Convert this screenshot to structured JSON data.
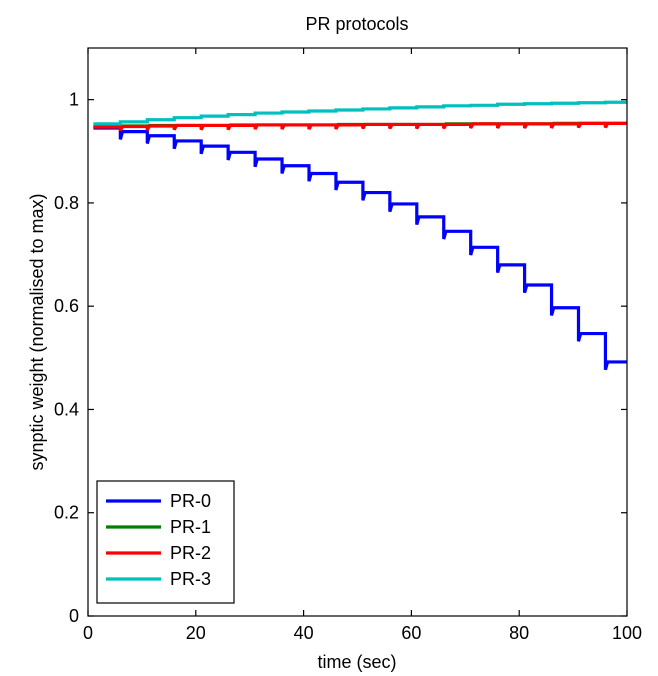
{
  "chart_data": {
    "type": "line",
    "title": "PR protocols",
    "xlabel": "time (sec)",
    "ylabel": "synptic weight (normalised to max)",
    "xlim": [
      0,
      100
    ],
    "ylim": [
      0,
      1.1
    ],
    "xticks": [
      0,
      20,
      40,
      60,
      80,
      100
    ],
    "yticks": [
      0,
      0.2,
      0.4,
      0.6,
      0.8,
      1
    ],
    "xtick_labels": [
      "0",
      "20",
      "40",
      "60",
      "80",
      "100"
    ],
    "ytick_labels": [
      "0",
      "0.2",
      "0.4",
      "0.6",
      "0.8",
      "1"
    ],
    "grid": false,
    "legend_position": "bottom-left",
    "series": [
      {
        "name": "PR-0",
        "color": "#0000ff",
        "step_times": [
          1,
          6,
          11,
          16,
          21,
          26,
          31,
          36,
          41,
          46,
          51,
          56,
          61,
          66,
          71,
          76,
          81,
          86,
          91,
          96
        ],
        "levels": [
          0.945,
          0.938,
          0.93,
          0.92,
          0.91,
          0.898,
          0.885,
          0.872,
          0.857,
          0.84,
          0.82,
          0.798,
          0.773,
          0.745,
          0.714,
          0.68,
          0.641,
          0.597,
          0.547,
          0.492
        ],
        "dip": 0.015,
        "end_x": 100
      },
      {
        "name": "PR-1",
        "color": "#008000",
        "step_times": [
          1,
          6,
          11,
          16,
          21,
          26,
          31,
          36,
          41,
          46,
          51,
          56,
          61,
          66,
          71,
          76,
          81,
          86,
          91,
          96
        ],
        "levels": [
          0.948,
          0.949,
          0.95,
          0.95,
          0.95,
          0.951,
          0.951,
          0.951,
          0.951,
          0.952,
          0.952,
          0.952,
          0.952,
          0.953,
          0.953,
          0.953,
          0.953,
          0.954,
          0.954,
          0.954
        ],
        "dip": 0.008,
        "end_x": 100
      },
      {
        "name": "PR-2",
        "color": "#ff0000",
        "step_times": [
          1,
          6,
          11,
          16,
          21,
          26,
          31,
          36,
          41,
          46,
          51,
          56,
          61,
          66,
          71,
          76,
          81,
          86,
          91,
          96
        ],
        "levels": [
          0.947,
          0.948,
          0.949,
          0.95,
          0.95,
          0.95,
          0.951,
          0.951,
          0.951,
          0.951,
          0.952,
          0.952,
          0.952,
          0.952,
          0.953,
          0.953,
          0.953,
          0.953,
          0.954,
          0.954
        ],
        "dip": 0.008,
        "end_x": 100
      },
      {
        "name": "PR-3",
        "color": "#00bfbf",
        "step_times": [
          1,
          6,
          11,
          16,
          21,
          26,
          31,
          36,
          41,
          46,
          51,
          56,
          61,
          66,
          71,
          76,
          81,
          86,
          91,
          96
        ],
        "levels": [
          0.953,
          0.957,
          0.961,
          0.965,
          0.968,
          0.971,
          0.974,
          0.976,
          0.978,
          0.98,
          0.982,
          0.984,
          0.986,
          0.988,
          0.989,
          0.991,
          0.992,
          0.993,
          0.994,
          0.995
        ],
        "dip": 0,
        "end_x": 100
      }
    ]
  }
}
